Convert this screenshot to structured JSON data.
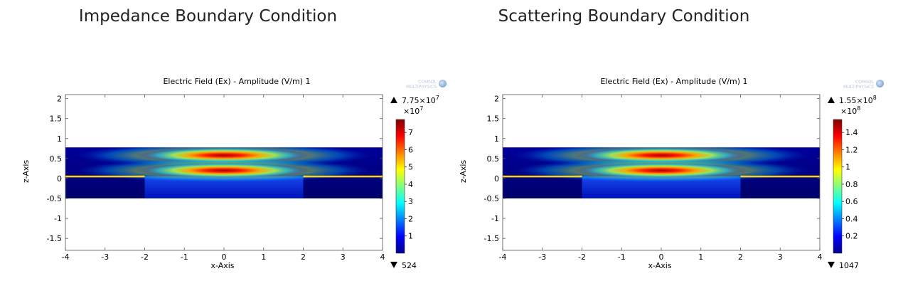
{
  "panels": [
    {
      "heading": "Impedance Boundary Condition",
      "watermark": "COMSOL MULTIPHYSICS",
      "chart_data": {
        "type": "heatmap",
        "title": "Electric Field (Ex) - Amplitude (V/m)  1",
        "xlabel": "x-Axis",
        "ylabel": "z-Axis",
        "xlim": [
          -4,
          4
        ],
        "ylim": [
          -1.8,
          2.1
        ],
        "x_ticks": [
          "-4",
          "-3",
          "-2",
          "-1",
          "0",
          "1",
          "2",
          "3",
          "4"
        ],
        "y_ticks": [
          "-1.5",
          "-1",
          "-0.5",
          "0",
          "0.5",
          "1",
          "1.5",
          "2"
        ],
        "domain": {
          "x": [
            -4,
            4
          ],
          "z": [
            -0.5,
            0.78
          ]
        },
        "electrode_segments": [
          {
            "x": [
              -4,
              -2
            ],
            "z": 0.05
          },
          {
            "x": [
              2,
              4
            ],
            "z": 0.05
          }
        ],
        "field_lobes": [
          {
            "x_center": 0,
            "z_center": 0.58
          },
          {
            "x_center": 0,
            "z_center": 0.2
          }
        ],
        "colorbar": {
          "max_label": "7.75×10",
          "max_exponent": "7",
          "multiplier_label": "×10",
          "multiplier_exponent": "7",
          "min_label": "524",
          "ticks": [
            "7",
            "6",
            "5",
            "4",
            "3",
            "2",
            "1"
          ],
          "tick_values": [
            7,
            6,
            5,
            4,
            3,
            2,
            1
          ],
          "range": [
            5.24e-05,
            7.75
          ]
        },
        "colormap": [
          "#00008f",
          "#0000ff",
          "#0080ff",
          "#00ffff",
          "#80ff80",
          "#ffff00",
          "#ff8000",
          "#ff0000",
          "#800000"
        ],
        "field_color": "#ff2a00",
        "electrode_color": "#ffd21a"
      }
    },
    {
      "heading": "Scattering Boundary Condition",
      "watermark": "COMSOL MULTIPHYSICS",
      "chart_data": {
        "type": "heatmap",
        "title": "Electric Field (Ex) - Amplitude (V/m)  1",
        "xlabel": "x-Axis",
        "ylabel": "z-Axis",
        "xlim": [
          -4,
          4
        ],
        "ylim": [
          -1.8,
          2.1
        ],
        "x_ticks": [
          "-4",
          "-3",
          "-2",
          "-1",
          "0",
          "1",
          "2",
          "3",
          "4"
        ],
        "y_ticks": [
          "-1.5",
          "-1",
          "-0.5",
          "0",
          "0.5",
          "1",
          "1.5",
          "2"
        ],
        "domain": {
          "x": [
            -4,
            4
          ],
          "z": [
            -0.5,
            0.78
          ]
        },
        "electrode_segments": [
          {
            "x": [
              -4,
              -2
            ],
            "z": 0.05
          },
          {
            "x": [
              2,
              4
            ],
            "z": 0.05
          }
        ],
        "field_lobes": [
          {
            "x_center": 0,
            "z_center": 0.58
          },
          {
            "x_center": 0,
            "z_center": 0.2
          }
        ],
        "colorbar": {
          "max_label": "1.55×10",
          "max_exponent": "8",
          "multiplier_label": "×10",
          "multiplier_exponent": "8",
          "min_label": "1047",
          "ticks": [
            "1.4",
            "1.2",
            "1",
            "0.8",
            "0.6",
            "0.4",
            "0.2"
          ],
          "tick_values": [
            1.4,
            1.2,
            1.0,
            0.8,
            0.6,
            0.4,
            0.2
          ],
          "range": [
            1.047e-05,
            1.55
          ]
        },
        "colormap": [
          "#00008f",
          "#0000ff",
          "#0080ff",
          "#00ffff",
          "#80ff80",
          "#ffff00",
          "#ff8000",
          "#ff0000",
          "#800000"
        ],
        "field_color": "#ff2a00",
        "electrode_color": "#ffd21a"
      }
    }
  ]
}
